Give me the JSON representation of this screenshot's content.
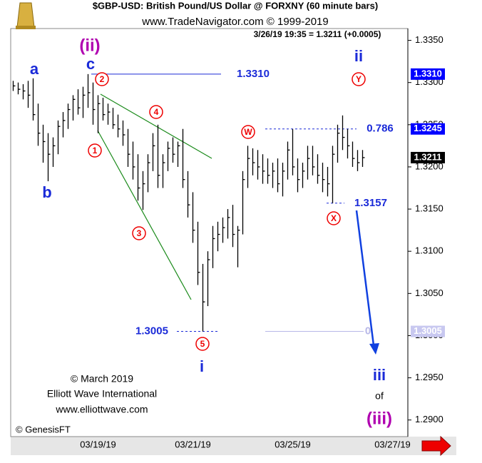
{
  "chart_data": {
    "type": "ohlc",
    "title": "$GBP-USD:  British Pound/US Dollar @ FORXNY  (60 minute bars)",
    "subtitle": "www.TradeNavigator.com © 1999-2019",
    "quote": "3/26/19 19:35 = 1.3211 (+0.0005)",
    "color": "#000000",
    "categories": [
      null,
      null,
      null,
      null,
      null,
      null,
      null,
      null,
      null,
      null,
      null,
      null,
      null,
      null,
      null,
      null,
      null,
      "03/19/19",
      null,
      null,
      null,
      null,
      null,
      null,
      null,
      null,
      null,
      null,
      null,
      null,
      null,
      null,
      null,
      null,
      null,
      null,
      "03/21/19",
      null,
      null,
      null,
      null,
      null,
      null,
      null,
      null,
      null,
      null,
      null,
      null,
      null,
      null,
      null,
      null,
      null,
      null,
      null,
      "03/25/19",
      null,
      null,
      null,
      null,
      null,
      null,
      null,
      null,
      null,
      null,
      null,
      null,
      null,
      null,
      null,
      null,
      null,
      null,
      null,
      "03/27/19",
      null,
      null,
      null
    ],
    "high": [
      1.3302,
      1.33,
      1.3298,
      1.3302,
      1.3305,
      1.3275,
      1.325,
      1.324,
      1.3235,
      1.3255,
      1.3265,
      1.3275,
      1.3285,
      1.3292,
      1.3295,
      1.331,
      1.33,
      1.3285,
      1.3282,
      1.3275,
      1.327,
      1.3262,
      1.3255,
      1.3245,
      1.323,
      1.3215,
      1.3195,
      1.3215,
      1.324,
      1.325,
      1.3215,
      1.323,
      1.3235,
      1.323,
      1.3245,
      1.3195,
      1.317,
      1.3135,
      1.3085,
      1.31,
      1.313,
      1.3135,
      1.314,
      1.315,
      1.3155,
      1.313,
      1.3195,
      1.3225,
      1.3222,
      1.322,
      1.3215,
      1.321,
      1.3205,
      1.321,
      1.3205,
      1.323,
      1.3245,
      1.321,
      1.3205,
      1.3225,
      1.3225,
      1.3215,
      1.3205,
      1.32,
      1.3225,
      1.325,
      1.3261,
      1.3245,
      1.323,
      1.322,
      1.322,
      null,
      null,
      null,
      null,
      null,
      null,
      null,
      null,
      null
    ],
    "low": [
      1.329,
      1.3286,
      1.328,
      1.327,
      1.3255,
      1.3225,
      1.3205,
      1.3183,
      1.32,
      1.3215,
      1.3235,
      1.3245,
      1.3255,
      1.3262,
      1.3258,
      1.327,
      1.325,
      1.324,
      1.3255,
      1.325,
      1.3245,
      1.3235,
      1.3225,
      1.32,
      1.3185,
      1.316,
      1.3149,
      1.317,
      1.3195,
      1.3175,
      1.3175,
      1.3195,
      1.3205,
      1.32,
      1.3175,
      1.314,
      1.311,
      1.306,
      1.3005,
      1.3035,
      1.308,
      1.31,
      1.311,
      1.3115,
      1.3105,
      1.3081,
      1.312,
      1.3175,
      1.319,
      1.3185,
      1.318,
      1.318,
      1.3175,
      1.317,
      1.3165,
      1.3185,
      1.319,
      1.317,
      1.3175,
      1.3185,
      1.319,
      1.318,
      1.317,
      1.3165,
      1.3157,
      1.3205,
      1.322,
      1.321,
      1.32,
      1.3195,
      1.32,
      null,
      null,
      null,
      null,
      null,
      null,
      null,
      null,
      null
    ],
    "close": [
      1.3296,
      1.3292,
      1.329,
      1.3285,
      1.3262,
      1.324,
      1.323,
      1.3215,
      1.3225,
      1.3248,
      1.3255,
      1.3268,
      1.328,
      1.327,
      1.3285,
      1.3288,
      1.3268,
      1.3275,
      1.3262,
      1.3265,
      1.325,
      1.3245,
      1.3238,
      1.3215,
      1.32,
      1.3175,
      1.318,
      1.3205,
      1.3225,
      1.319,
      1.3205,
      1.3222,
      1.3215,
      1.3225,
      1.3185,
      1.3155,
      1.3125,
      1.3075,
      1.304,
      1.309,
      1.3115,
      1.312,
      1.3128,
      1.314,
      1.312,
      1.3125,
      1.3185,
      1.321,
      1.3205,
      1.32,
      1.3195,
      1.319,
      1.3195,
      1.318,
      1.3195,
      1.322,
      1.32,
      1.3185,
      1.3195,
      1.321,
      1.32,
      1.319,
      1.3185,
      1.318,
      1.3215,
      1.324,
      1.3235,
      1.3225,
      1.321,
      1.3205,
      1.3211,
      null,
      null,
      null,
      null,
      null,
      null,
      null,
      null,
      null
    ],
    "ylim": [
      1.2882,
      1.3364
    ],
    "yticks": [
      {
        "value": 1.29,
        "label": "1.2900"
      },
      {
        "value": 1.295,
        "label": "1.2950"
      },
      {
        "value": 1.3,
        "label": "1.3000"
      },
      {
        "value": 1.305,
        "label": "1.3050"
      },
      {
        "value": 1.31,
        "label": "1.3100"
      },
      {
        "value": 1.315,
        "label": "1.3150"
      },
      {
        "value": 1.32,
        "label": "1.3200"
      },
      {
        "value": 1.325,
        "label": "1.3250"
      },
      {
        "value": 1.33,
        "label": "1.3300"
      },
      {
        "value": 1.335,
        "label": "1.3350"
      }
    ],
    "levels": [
      {
        "value": 1.331,
        "label": "1.3310"
      },
      {
        "value": 1.3245,
        "label": "0.786"
      },
      {
        "value": 1.3157,
        "label": "1.3157"
      },
      {
        "value": 1.3005,
        "label": "1.3005"
      }
    ],
    "fib_zero_label": "0",
    "axis_flags": [
      {
        "value": 1.331,
        "label": "1.3310",
        "color": "#0000ff"
      },
      {
        "value": 1.3245,
        "label": "1.3245",
        "color": "#0000ff"
      },
      {
        "value": 1.3211,
        "label": "1.3211",
        "color": "#000000"
      },
      {
        "value": 1.3005,
        "label": "1.3005",
        "color": "#c8c8f0"
      }
    ],
    "wave_labels": [
      "a",
      "b",
      "c",
      "(ii)",
      "ii",
      "i",
      "iii",
      "of",
      "(iii)"
    ],
    "circled_labels": [
      "1",
      "2",
      "3",
      "4",
      "5",
      "W",
      "X",
      "Y"
    ],
    "credits": [
      "© March 2019",
      "Elliott Wave International",
      "www.elliottwave.com",
      "© GenesisFT"
    ]
  }
}
